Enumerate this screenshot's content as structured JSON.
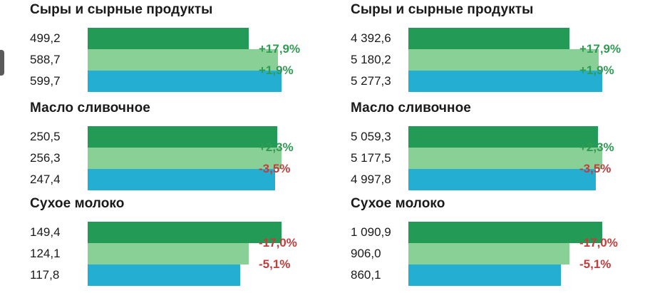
{
  "chart_data": [
    {
      "type": "bar",
      "orientation": "horizontal",
      "groups": [
        {
          "title": "Сыры и сырные продукты",
          "values": [
            499.2,
            588.7,
            599.7
          ],
          "labels": [
            "499,2",
            "588,7",
            "599,7"
          ],
          "changes": [
            "+17,9%",
            "+1,9%"
          ]
        },
        {
          "title": "Масло сливочное",
          "values": [
            250.5,
            256.3,
            247.4
          ],
          "labels": [
            "250,5",
            "256,3",
            "247,4"
          ],
          "changes": [
            "+2,3%",
            "-3,5%"
          ]
        },
        {
          "title": "Сухое молоко",
          "values": [
            149.4,
            124.1,
            117.8
          ],
          "labels": [
            "149,4",
            "124,1",
            "117,8"
          ],
          "changes": [
            "-17,0%",
            "-5,1%"
          ]
        }
      ]
    },
    {
      "type": "bar",
      "orientation": "horizontal",
      "groups": [
        {
          "title": "Сыры и сырные продукты",
          "values": [
            4392.6,
            5180.2,
            5277.3
          ],
          "labels": [
            "4 392,6",
            "5 180,2",
            "5 277,3"
          ],
          "changes": [
            "+17,9%",
            "+1,9%"
          ]
        },
        {
          "title": "Масло сливочное",
          "values": [
            5059.3,
            5177.5,
            4997.8
          ],
          "labels": [
            "5 059,3",
            "5 177,5",
            "4 997,8"
          ],
          "changes": [
            "+2,3%",
            "-3,5%"
          ]
        },
        {
          "title": "Сухое молоко",
          "values": [
            1090.9,
            906.0,
            860.1
          ],
          "labels": [
            "1 090,9",
            "906,0",
            "860,1"
          ],
          "changes": [
            "-17,0%",
            "-5,1%"
          ]
        }
      ]
    }
  ],
  "colors": {
    "bar_dark_green": "#239b56",
    "bar_light_green": "#88d096",
    "bar_blue": "#23aed2",
    "positive_change": "#2f9c52",
    "negative_change": "#c33d3d"
  }
}
